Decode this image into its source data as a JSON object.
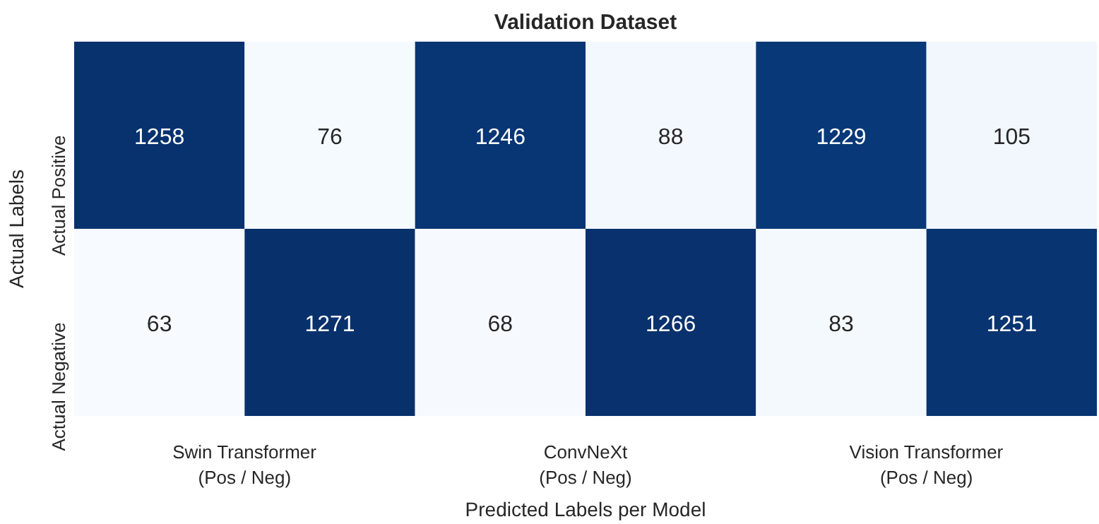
{
  "chart_data": {
    "type": "heatmap",
    "title": "Validation Dataset",
    "xlabel": "Predicted Labels per Model",
    "ylabel": "Actual Labels",
    "categories": [
      "Swin Transformer\n(Pos / Neg)",
      null,
      "ConvNeXt\n(Pos / Neg)",
      null,
      "Vision Transformer\n(Pos / Neg)",
      null
    ],
    "y_categories": [
      "Actual Positive",
      "Actual Negative"
    ],
    "cells": [
      [
        1258,
        76,
        1246,
        88,
        1229,
        105
      ],
      [
        63,
        1271,
        68,
        1266,
        83,
        1251
      ]
    ],
    "data_labels": true
  }
}
